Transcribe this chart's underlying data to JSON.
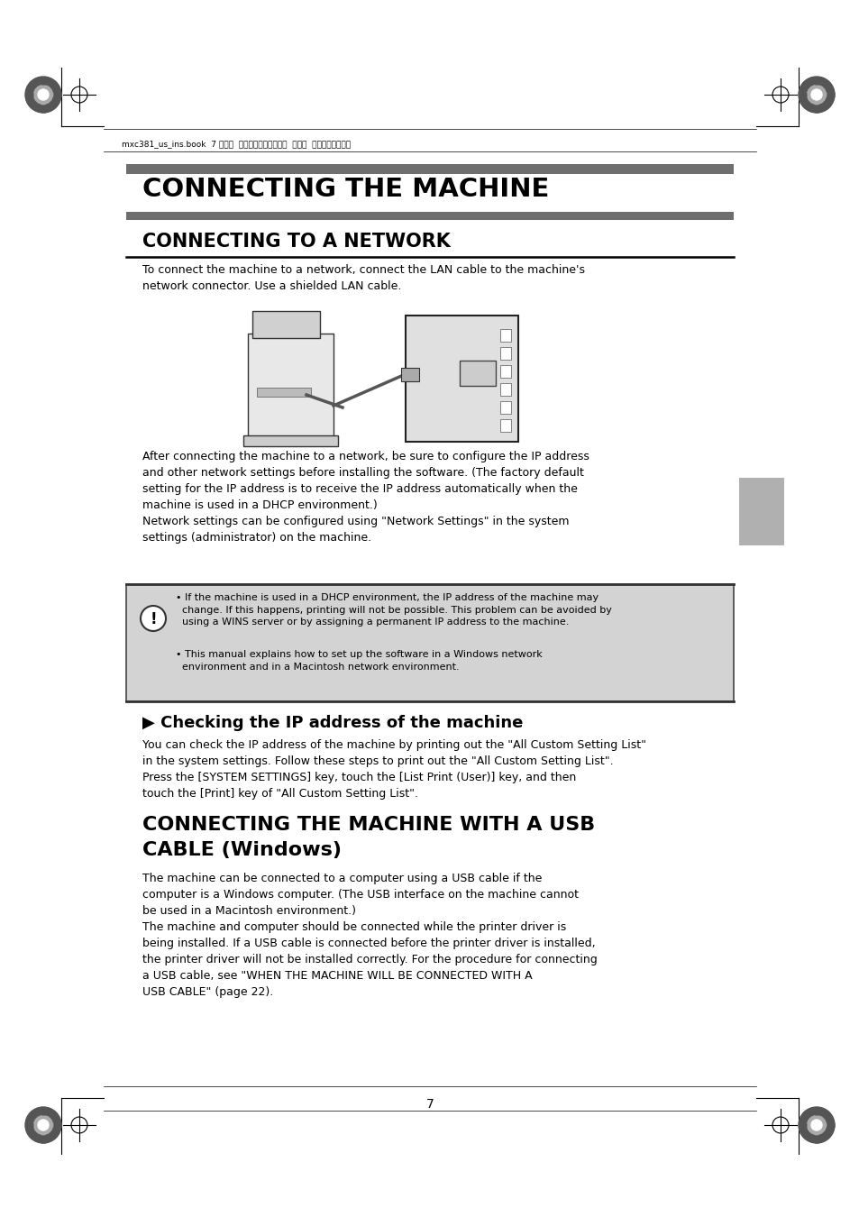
{
  "page_bg": "#ffffff",
  "header_text": "mxc381_us_ins.book  7 ページ  ２００８年８月１９日  火曜日  午前１０時４２分",
  "main_title": "CONNECTING THE MACHINE",
  "section1_title": "CONNECTING TO A NETWORK",
  "section1_body1": "To connect the machine to a network, connect the LAN cable to the machine's\nnetwork connector. Use a shielded LAN cable.",
  "section1_body2": "After connecting the machine to a network, be sure to configure the IP address\nand other network settings before installing the software. (The factory default\nsetting for the IP address is to receive the IP address automatically when the\nmachine is used in a DHCP environment.)\nNetwork settings can be configured using \"Network Settings\" in the system\nsettings (administrator) on the machine.",
  "warning_bullet1": "• If the machine is used in a DHCP environment, the IP address of the machine may\n  change. If this happens, printing will not be possible. This problem can be avoided by\n  using a WINS server or by assigning a permanent IP address to the machine.",
  "warning_bullet2": "• This manual explains how to set up the software in a Windows network\n  environment and in a Macintosh network environment.",
  "subsection_title": "▶ Checking the IP address of the machine",
  "subsection_body": "You can check the IP address of the machine by printing out the \"All Custom Setting List\"\nin the system settings. Follow these steps to print out the \"All Custom Setting List\".\nPress the [SYSTEM SETTINGS] key, touch the [List Print (User)] key, and then\ntouch the [Print] key of \"All Custom Setting List\".",
  "section2_title_line1": "CONNECTING THE MACHINE WITH A USB",
  "section2_title_line2": "CABLE (Windows)",
  "section2_body": "The machine can be connected to a computer using a USB cable if the\ncomputer is a Windows computer. (The USB interface on the machine cannot\nbe used in a Macintosh environment.)\nThe machine and computer should be connected while the printer driver is\nbeing installed. If a USB cable is connected before the printer driver is installed,\nthe printer driver will not be installed correctly. For the procedure for connecting\na USB cable, see \"WHEN THE MACHINE WILL BE CONNECTED WITH A\nUSB CABLE\" (page 22).",
  "page_number": "7",
  "bar_color": "#6e6e6e",
  "warning_bg": "#d3d3d3",
  "gray_tab_color": "#b0b0b0"
}
